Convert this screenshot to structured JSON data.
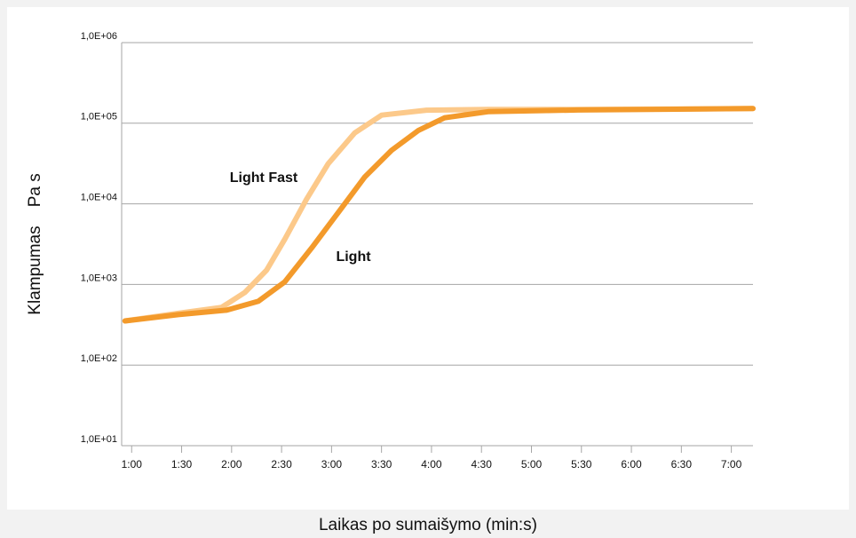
{
  "chart_data": {
    "type": "line",
    "y_label": "Klampumas    Pa s",
    "x_label": "Laikas po sumaišymo (min:s)",
    "annotations": [
      "Light Fast",
      "Light"
    ],
    "yscale": "log",
    "grid": true,
    "xlim": [
      54,
      433
    ],
    "ylim": [
      10,
      1000000
    ],
    "yticks": [
      {
        "value": 10,
        "label": "1,0E+01"
      },
      {
        "value": 100,
        "label": "1,0E+02"
      },
      {
        "value": 1000,
        "label": "1,0E+03"
      },
      {
        "value": 10000,
        "label": "1,0E+04"
      },
      {
        "value": 100000,
        "label": "1,0E+05"
      },
      {
        "value": 1000000,
        "label": "1,0E+06"
      }
    ],
    "xticks": [
      {
        "value": 60,
        "label": "1:00"
      },
      {
        "value": 90,
        "label": "1:30"
      },
      {
        "value": 120,
        "label": "2:00"
      },
      {
        "value": 150,
        "label": "2:30"
      },
      {
        "value": 180,
        "label": "3:00"
      },
      {
        "value": 210,
        "label": "3:30"
      },
      {
        "value": 240,
        "label": "4:00"
      },
      {
        "value": 270,
        "label": "4:30"
      },
      {
        "value": 300,
        "label": "5:00"
      },
      {
        "value": 330,
        "label": "5:30"
      },
      {
        "value": 360,
        "label": "6:00"
      },
      {
        "value": 390,
        "label": "6:30"
      },
      {
        "value": 420,
        "label": "7:00"
      }
    ],
    "series": [
      {
        "name": "Light Fast",
        "color": "#fcc98a",
        "x": [
          56,
          88,
          114,
          128,
          141,
          152,
          165,
          178,
          194,
          210,
          237,
          274,
          328,
          433
        ],
        "values": [
          353,
          440,
          520,
          795,
          1500,
          3650,
          11400,
          31500,
          76000,
          126000,
          145000,
          148000,
          148000,
          152000
        ]
      },
      {
        "name": "Light",
        "color": "#f39a2b",
        "x": [
          56,
          88,
          117,
          136,
          152,
          168,
          184,
          200,
          216,
          232,
          248,
          274,
          328,
          433
        ],
        "values": [
          353,
          422,
          479,
          617,
          1080,
          2830,
          7800,
          21600,
          46000,
          81000,
          117000,
          139000,
          146000,
          152000
        ]
      }
    ]
  }
}
